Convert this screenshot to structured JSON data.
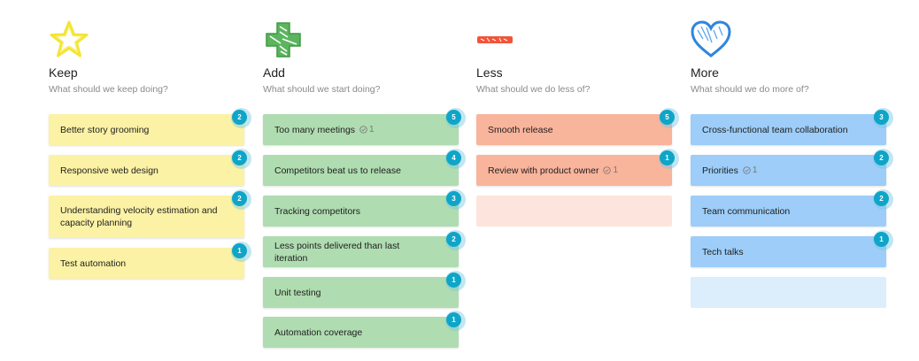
{
  "columns": {
    "keep": {
      "title": "Keep",
      "subtitle": "What should we keep doing?",
      "icon": "star-icon",
      "color": "#fbf2a5",
      "cards": [
        {
          "text": "Better story grooming",
          "votes": "2"
        },
        {
          "text": "Responsive web design",
          "votes": "2"
        },
        {
          "text": "Understanding velocity estimation and capacity planning",
          "votes": "2"
        },
        {
          "text": "Test automation",
          "votes": "1"
        }
      ]
    },
    "add": {
      "title": "Add",
      "subtitle": "What should we start doing?",
      "icon": "plus-icon",
      "color": "#afdcb0",
      "cards": [
        {
          "text": "Too many meetings",
          "votes": "5",
          "checks": "1"
        },
        {
          "text": "Competitors beat us to release",
          "votes": "4"
        },
        {
          "text": "Tracking competitors",
          "votes": "3"
        },
        {
          "text": "Less points delivered than last iteration",
          "votes": "2"
        },
        {
          "text": "Unit testing",
          "votes": "1"
        },
        {
          "text": "Automation coverage",
          "votes": "1"
        }
      ]
    },
    "less": {
      "title": "Less",
      "subtitle": "What should we do less of?",
      "icon": "minus-icon",
      "color": "#f9b49c",
      "cards": [
        {
          "text": "Smooth release",
          "votes": "5"
        },
        {
          "text": "Review with product owner",
          "votes": "1",
          "checks": "1"
        }
      ]
    },
    "more": {
      "title": "More",
      "subtitle": "What should we do more of?",
      "icon": "heart-icon",
      "color": "#9dcdf8",
      "cards": [
        {
          "text": "Cross-functional team collaboration",
          "votes": "3"
        },
        {
          "text": "Priorities",
          "votes": "2",
          "checks": "1"
        },
        {
          "text": "Team communication",
          "votes": "2"
        },
        {
          "text": "Tech talks",
          "votes": "1"
        }
      ]
    }
  }
}
